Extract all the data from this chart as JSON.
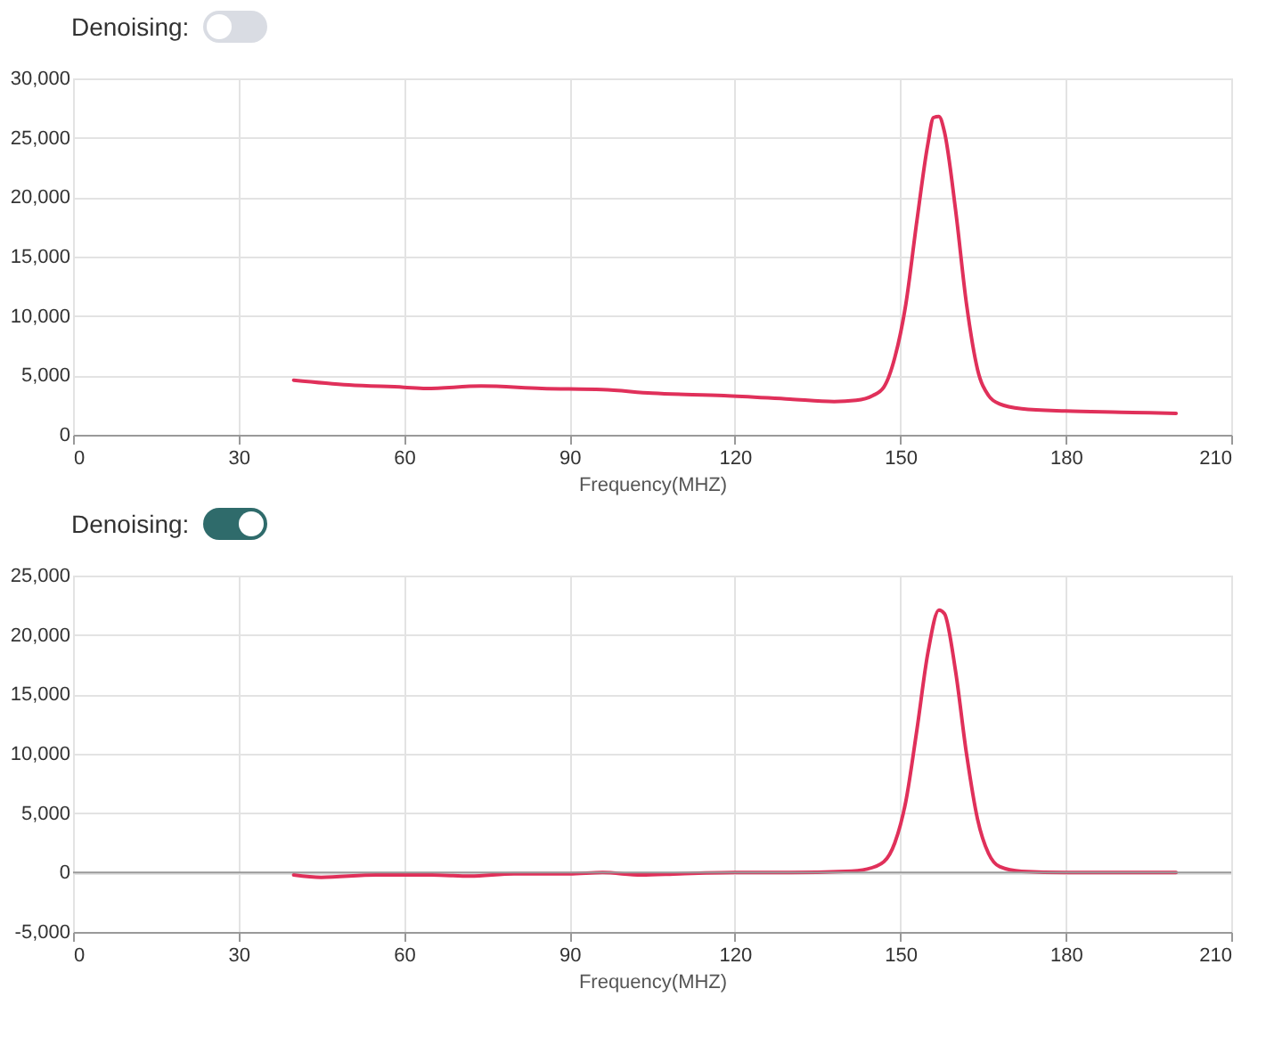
{
  "chart_data": [
    {
      "type": "line",
      "title": "Denoising:",
      "xlabel": "Frequency(MHZ)",
      "xlim": [
        0,
        210
      ],
      "xticks": [
        0,
        30,
        60,
        90,
        120,
        150,
        180,
        210
      ],
      "ylim": [
        0,
        30000
      ],
      "yticks": [
        0,
        {
          "value": 5000,
          "label": "5,000"
        },
        {
          "value": 10000,
          "label": "10,000"
        },
        {
          "value": 15000,
          "label": "15,000"
        },
        {
          "value": 20000,
          "label": "20,000"
        },
        {
          "value": 25000,
          "label": "25,000"
        },
        {
          "value": 30000,
          "label": "30,000"
        }
      ],
      "grid": true,
      "marker": "none",
      "line_style": "solid",
      "x": [
        40,
        50,
        60,
        64,
        74,
        85,
        96,
        105,
        118,
        130,
        138,
        142,
        145,
        147,
        149,
        151,
        153,
        155,
        156,
        157,
        158,
        160,
        162,
        164,
        166,
        168,
        172,
        180,
        190,
        200
      ],
      "series": [
        {
          "color": "#e0305a",
          "values": [
            4600,
            4200,
            4000,
            3900,
            4100,
            3900,
            3800,
            3500,
            3300,
            3000,
            2800,
            2900,
            3300,
            4000,
            6500,
            11000,
            18000,
            24500,
            26700,
            26800,
            25500,
            19000,
            11000,
            5500,
            3300,
            2600,
            2200,
            2000,
            1900,
            1800
          ]
        }
      ]
    },
    {
      "type": "line",
      "title": "Denoising:",
      "xlabel": "Frequency(MHZ)",
      "xlim": [
        0,
        210
      ],
      "xticks": [
        0,
        30,
        60,
        90,
        120,
        150,
        180,
        210
      ],
      "ylim": [
        -5000,
        25000
      ],
      "yticks": [
        {
          "value": -5000,
          "label": "-5,000"
        },
        0,
        {
          "value": 5000,
          "label": "5,000"
        },
        {
          "value": 10000,
          "label": "10,000"
        },
        {
          "value": 15000,
          "label": "15,000"
        },
        {
          "value": 20000,
          "label": "20,000"
        },
        {
          "value": 25000,
          "label": "25,000"
        }
      ],
      "grid": true,
      "marker": "none",
      "line_style": "solid",
      "ref_lines": [
        {
          "axis": "y",
          "value": 0,
          "color": "#999999"
        }
      ],
      "x": [
        40,
        45,
        55,
        65,
        72,
        80,
        90,
        96,
        103,
        110,
        120,
        130,
        140,
        144,
        147,
        149,
        151,
        153,
        155,
        157,
        158,
        160,
        162,
        164,
        166,
        168,
        172,
        180,
        190,
        200
      ],
      "series": [
        {
          "color": "#e0305a",
          "values": [
            -200,
            -400,
            -200,
            -200,
            -300,
            -100,
            -100,
            0,
            -200,
            -100,
            0,
            0,
            100,
            300,
            900,
            2500,
            6000,
            12000,
            18500,
            22100,
            21800,
            17000,
            10000,
            4500,
            1600,
            500,
            100,
            0,
            0,
            0
          ]
        }
      ]
    }
  ]
}
